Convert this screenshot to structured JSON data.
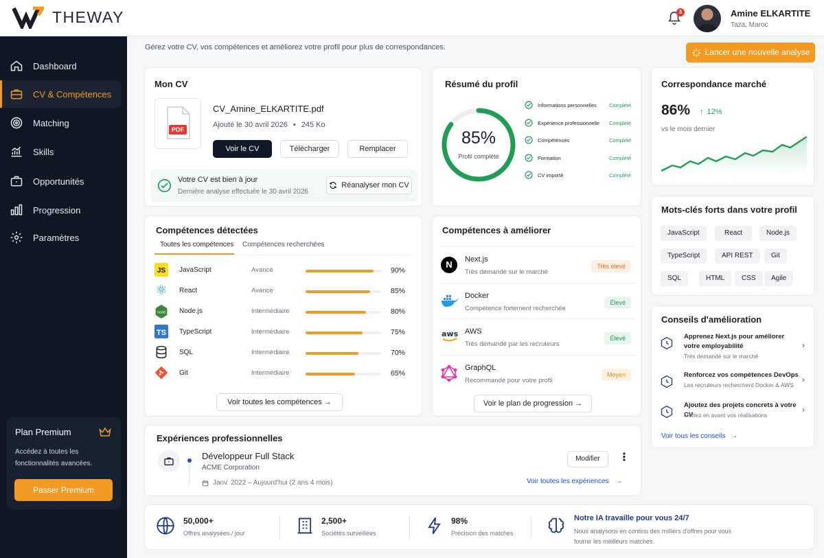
{
  "brand": {
    "name": "THEWAY"
  },
  "header": {
    "notifications": "3",
    "user_name": "Amine ELKARTITE",
    "user_location": "Taza, Maroc"
  },
  "sidebar": {
    "items": [
      {
        "label": "Dashboard",
        "icon": "home-icon"
      },
      {
        "label": "CV & Compétences",
        "icon": "briefcase-icon"
      },
      {
        "label": "Matching",
        "icon": "target-icon"
      },
      {
        "label": "Skills",
        "icon": "chart-icon"
      },
      {
        "label": "Opportunités",
        "icon": "case-icon"
      },
      {
        "label": "Progression",
        "icon": "bars-icon"
      },
      {
        "label": "Paramètres",
        "icon": "gear-icon"
      }
    ],
    "premium": {
      "title": "Plan Premium",
      "desc_1": "Accédez à toutes les",
      "desc_2": "fonctionnalités avancées.",
      "button": "Passer Premium"
    }
  },
  "main": {
    "subtitle": "Gérez votre CV, vos compétences et améliorez votre profil pour plus de correspondances.",
    "launch_button": "Lancer une nouvelle analyse"
  },
  "cv": {
    "title": "Mon CV",
    "file_badge": "PDF",
    "file_name": "CV_Amine_ELKARTITE.pdf",
    "added": "Ajouté le 30 avril 2026",
    "dot": "•",
    "size": "245 Ko",
    "btn_view": "Voir le CV",
    "btn_download": "Télécharger",
    "btn_replace": "Remplacer",
    "status_title": "Votre CV est bien à jour",
    "status_desc": "Dernière analyse effectuée le 30 avril 2026",
    "btn_reanalyze": "Réanalyser mon CV"
  },
  "profile": {
    "title": "Résumé du profil",
    "percent": "85%",
    "percent_value": 85,
    "percent_label": "Profil complété",
    "items": [
      {
        "label": "Informations personnelles",
        "status": "Complété"
      },
      {
        "label": "Expérience professionnelle",
        "status": "Complété"
      },
      {
        "label": "Compétences",
        "status": "Complété"
      },
      {
        "label": "Formation",
        "status": "Complété"
      },
      {
        "label": "CV importé",
        "status": "Complété"
      }
    ]
  },
  "market": {
    "title": "Correspondance marché",
    "value": "86%",
    "delta": "12%",
    "caption": "vs le mois dernier"
  },
  "skills": {
    "title": "Compétences détectées",
    "tab_all": "Toutes les compétences",
    "tab_wanted": "Compétences recherchées",
    "rows": [
      {
        "icon": "JS",
        "name": "JavaScript",
        "level": "Avancé",
        "pct": "90%",
        "value": 90
      },
      {
        "icon": "⚛",
        "name": "React",
        "level": "Avancé",
        "pct": "85%",
        "value": 85
      },
      {
        "icon": "node",
        "name": "Node.js",
        "level": "Intermédiaire",
        "pct": "80%",
        "value": 80
      },
      {
        "icon": "TS",
        "name": "TypeScript",
        "level": "Intermédiaire",
        "pct": "75%",
        "value": 75
      },
      {
        "icon": "db",
        "name": "SQL",
        "level": "Intermédiaire",
        "pct": "70%",
        "value": 70
      },
      {
        "icon": "git",
        "name": "Git",
        "level": "Intermédiaire",
        "pct": "65%",
        "value": 65
      }
    ],
    "button": "Voir toutes les compétences"
  },
  "improve": {
    "title": "Compétences à améliorer",
    "rows": [
      {
        "icon": "N",
        "name": "Next.js",
        "desc": "Très demandé sur le marché",
        "level": "Très élevé"
      },
      {
        "icon": "docker",
        "name": "Docker",
        "desc": "Compétence fortement recherchée",
        "level": "Élevé"
      },
      {
        "icon": "aws",
        "name": "AWS",
        "desc": "Très demandé par les recruteurs",
        "level": "Élevé"
      },
      {
        "icon": "graphql",
        "name": "GraphQL",
        "desc": "Recommandé pour votre profil",
        "level": "Moyen"
      }
    ],
    "button": "Voir le plan de progression"
  },
  "keywords": {
    "title": "Mots-clés forts dans votre profil",
    "tags": [
      "JavaScript",
      "React",
      "Node.js",
      "TypeScript",
      "API REST",
      "Git",
      "SQL",
      "HTML",
      "CSS",
      "Agile"
    ]
  },
  "tips": {
    "title": "Conseils d'amélioration",
    "items": [
      {
        "title_1": "Apprenez Next.js pour améliorer",
        "title_2": "votre employabilité",
        "desc": "Très demandé sur le marché"
      },
      {
        "title_1": "Renforcez vos compétences DevOps",
        "title_2": "",
        "desc": "Les recruteurs recherchent Docker & AWS"
      },
      {
        "title_1": "Ajoutez des projets concrets à votre CV",
        "title_2": "",
        "desc": "Mettez en avant vos réalisations"
      }
    ],
    "link": "Voir tous les conseils"
  },
  "experience": {
    "title": "Expériences professionnelles",
    "role": "Développeur Full Stack",
    "company": "ACME Corporation",
    "dates": "Janv. 2022 – Aujourd'hui (2 ans 4 mois)",
    "btn_edit": "Modifier",
    "link": "Voir toutes les expériences"
  },
  "stats": [
    {
      "value": "50,000+",
      "label": "Offres analysées / jour"
    },
    {
      "value": "2,500+",
      "label": "Sociétés surveillées"
    },
    {
      "value": "98%",
      "label": "Précision des matches"
    }
  ],
  "ai": {
    "title": "Notre IA travaille pour vous 24/7",
    "desc_1": "Nous analysons en continu des milliers d'offres pour vous",
    "desc_2": "fournir les meilleurs matches."
  }
}
